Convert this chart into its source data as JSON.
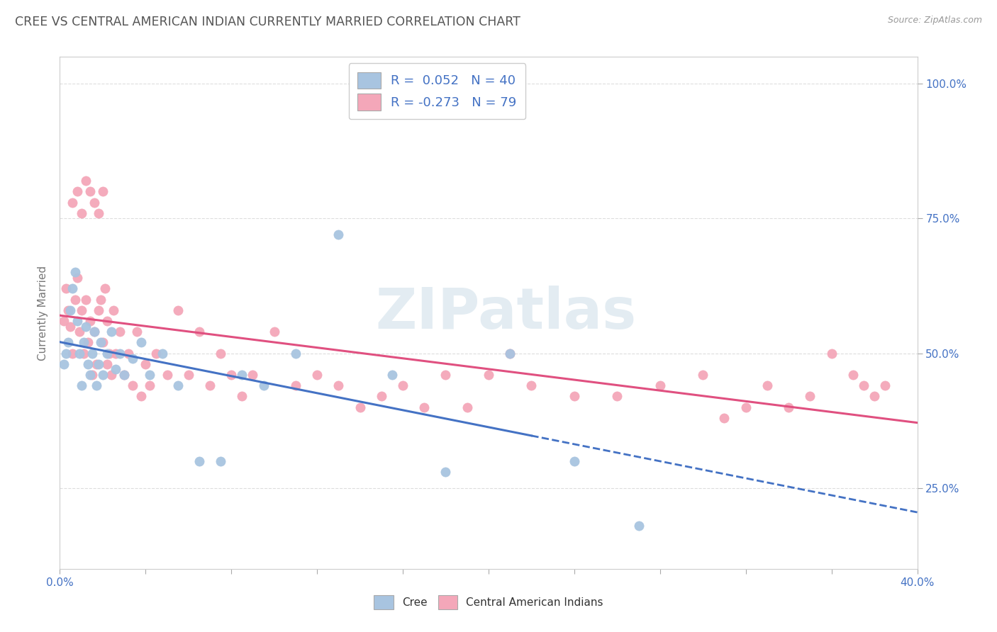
{
  "title": "CREE VS CENTRAL AMERICAN INDIAN CURRENTLY MARRIED CORRELATION CHART",
  "source": "Source: ZipAtlas.com",
  "ylabel": "Currently Married",
  "xmin": 0.0,
  "xmax": 0.4,
  "ymin": 0.1,
  "ymax": 1.05,
  "yticks": [
    0.25,
    0.5,
    0.75,
    1.0
  ],
  "ytick_labels": [
    "25.0%",
    "50.0%",
    "75.0%",
    "100.0%"
  ],
  "cree_R": 0.052,
  "cree_N": 40,
  "cai_R": -0.273,
  "cai_N": 79,
  "cree_color": "#a8c4e0",
  "cai_color": "#f4a7b9",
  "cree_line_color": "#4472c4",
  "cai_line_color": "#e05080",
  "legend_text_color": "#4472c4",
  "title_color": "#555555",
  "watermark_color": "#ccdde8",
  "watermark_text": "ZIPatlas",
  "background_color": "#ffffff",
  "grid_color": "#dddddd",
  "cree_x": [
    0.002,
    0.003,
    0.004,
    0.005,
    0.006,
    0.007,
    0.008,
    0.009,
    0.01,
    0.011,
    0.012,
    0.013,
    0.014,
    0.015,
    0.016,
    0.017,
    0.018,
    0.019,
    0.02,
    0.022,
    0.024,
    0.026,
    0.028,
    0.03,
    0.034,
    0.038,
    0.042,
    0.048,
    0.055,
    0.065,
    0.075,
    0.085,
    0.095,
    0.11,
    0.13,
    0.155,
    0.18,
    0.21,
    0.24,
    0.27
  ],
  "cree_y": [
    0.48,
    0.5,
    0.52,
    0.58,
    0.62,
    0.65,
    0.56,
    0.5,
    0.44,
    0.52,
    0.55,
    0.48,
    0.46,
    0.5,
    0.54,
    0.44,
    0.48,
    0.52,
    0.46,
    0.5,
    0.54,
    0.47,
    0.5,
    0.46,
    0.49,
    0.52,
    0.46,
    0.5,
    0.44,
    0.3,
    0.3,
    0.46,
    0.44,
    0.5,
    0.72,
    0.46,
    0.28,
    0.5,
    0.3,
    0.18
  ],
  "cai_x": [
    0.002,
    0.003,
    0.004,
    0.005,
    0.006,
    0.007,
    0.008,
    0.009,
    0.01,
    0.011,
    0.012,
    0.013,
    0.014,
    0.015,
    0.016,
    0.017,
    0.018,
    0.019,
    0.02,
    0.021,
    0.022,
    0.023,
    0.024,
    0.025,
    0.026,
    0.028,
    0.03,
    0.032,
    0.034,
    0.036,
    0.038,
    0.04,
    0.042,
    0.045,
    0.05,
    0.055,
    0.06,
    0.065,
    0.07,
    0.075,
    0.08,
    0.085,
    0.09,
    0.1,
    0.11,
    0.12,
    0.13,
    0.14,
    0.15,
    0.16,
    0.17,
    0.18,
    0.19,
    0.2,
    0.21,
    0.22,
    0.24,
    0.26,
    0.28,
    0.3,
    0.31,
    0.32,
    0.33,
    0.34,
    0.35,
    0.36,
    0.37,
    0.375,
    0.38,
    0.385,
    0.006,
    0.008,
    0.01,
    0.012,
    0.014,
    0.016,
    0.018,
    0.02,
    0.022
  ],
  "cai_y": [
    0.56,
    0.62,
    0.58,
    0.55,
    0.5,
    0.6,
    0.64,
    0.54,
    0.58,
    0.5,
    0.6,
    0.52,
    0.56,
    0.46,
    0.54,
    0.48,
    0.58,
    0.6,
    0.52,
    0.62,
    0.56,
    0.5,
    0.46,
    0.58,
    0.5,
    0.54,
    0.46,
    0.5,
    0.44,
    0.54,
    0.42,
    0.48,
    0.44,
    0.5,
    0.46,
    0.58,
    0.46,
    0.54,
    0.44,
    0.5,
    0.46,
    0.42,
    0.46,
    0.54,
    0.44,
    0.46,
    0.44,
    0.4,
    0.42,
    0.44,
    0.4,
    0.46,
    0.4,
    0.46,
    0.5,
    0.44,
    0.42,
    0.42,
    0.44,
    0.46,
    0.38,
    0.4,
    0.44,
    0.4,
    0.42,
    0.5,
    0.46,
    0.44,
    0.42,
    0.44,
    0.78,
    0.8,
    0.76,
    0.82,
    0.8,
    0.78,
    0.76,
    0.8,
    0.48
  ]
}
